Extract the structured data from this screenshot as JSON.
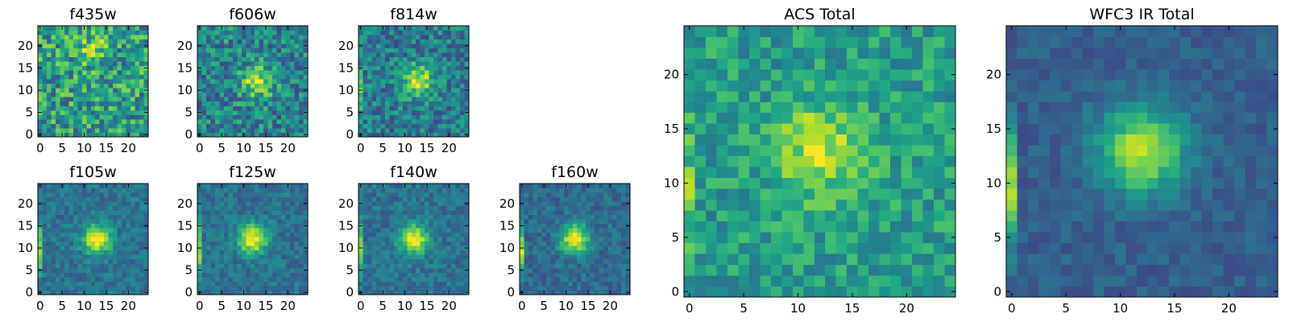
{
  "chart_data": {
    "type": "heatmap",
    "colormap": "viridis",
    "pixels_per_side": 25,
    "panels": [
      {
        "id": "f435w",
        "title": "f435w",
        "xticks": [
          0,
          5,
          10,
          15,
          20
        ],
        "yticks": [
          0,
          5,
          10,
          15,
          20
        ],
        "center": [
          12,
          19
        ],
        "peak": 0.3,
        "sigma": 2.2,
        "noise": 0.55,
        "base": 0.55,
        "edge": 0.0,
        "seed": 11,
        "xlim": [
          -0.5,
          24.5
        ],
        "ylim": [
          -0.5,
          24.5
        ]
      },
      {
        "id": "f606w",
        "title": "f606w",
        "xticks": [
          0,
          5,
          10,
          15,
          20
        ],
        "yticks": [
          0,
          5,
          10,
          15,
          20
        ],
        "center": [
          13,
          12
        ],
        "peak": 0.45,
        "sigma": 2.5,
        "noise": 0.45,
        "base": 0.45,
        "edge": 0.0,
        "seed": 23,
        "xlim": [
          -0.5,
          24.5
        ],
        "ylim": [
          -0.5,
          24.5
        ]
      },
      {
        "id": "f814w",
        "title": "f814w",
        "xticks": [
          0,
          5,
          10,
          15,
          20
        ],
        "yticks": [
          0,
          5,
          10,
          15,
          20
        ],
        "center": [
          13,
          12
        ],
        "peak": 0.5,
        "sigma": 2.5,
        "noise": 0.4,
        "base": 0.42,
        "edge": 0.25,
        "seed": 37,
        "xlim": [
          -0.5,
          24.5
        ],
        "ylim": [
          -0.5,
          24.5
        ]
      },
      {
        "id": "f105w",
        "title": "f105w",
        "xticks": [
          0,
          5,
          10,
          15,
          20
        ],
        "yticks": [
          0,
          5,
          10,
          15,
          20
        ],
        "center": [
          13,
          12
        ],
        "peak": 0.65,
        "sigma": 2.3,
        "noise": 0.22,
        "base": 0.38,
        "edge": 0.45,
        "seed": 41,
        "xlim": [
          -0.5,
          24.5
        ],
        "ylim": [
          -0.5,
          24.5
        ]
      },
      {
        "id": "f125w",
        "title": "f125w",
        "xticks": [
          0,
          5,
          10,
          15,
          20
        ],
        "yticks": [
          0,
          5,
          10,
          15,
          20
        ],
        "center": [
          12,
          12
        ],
        "peak": 0.65,
        "sigma": 2.3,
        "noise": 0.22,
        "base": 0.38,
        "edge": 0.45,
        "seed": 53,
        "xlim": [
          -0.5,
          24.5
        ],
        "ylim": [
          -0.5,
          24.5
        ]
      },
      {
        "id": "f140w",
        "title": "f140w",
        "xticks": [
          0,
          5,
          10,
          15,
          20
        ],
        "yticks": [
          0,
          5,
          10,
          15,
          20
        ],
        "center": [
          12,
          12
        ],
        "peak": 0.62,
        "sigma": 2.3,
        "noise": 0.22,
        "base": 0.38,
        "edge": 0.5,
        "seed": 67,
        "xlim": [
          -0.5,
          24.5
        ],
        "ylim": [
          -0.5,
          24.5
        ]
      },
      {
        "id": "f160w",
        "title": "f160w",
        "xticks": [
          0,
          5,
          10,
          15,
          20
        ],
        "yticks": [
          0,
          5,
          10,
          15,
          20
        ],
        "center": [
          12,
          12
        ],
        "peak": 0.65,
        "sigma": 2.3,
        "noise": 0.22,
        "base": 0.35,
        "edge": 0.55,
        "seed": 79,
        "xlim": [
          -0.5,
          24.5
        ],
        "ylim": [
          -0.5,
          24.5
        ]
      },
      {
        "id": "acs-total",
        "title": "ACS Total",
        "xticks": [
          0,
          5,
          10,
          15,
          20
        ],
        "yticks": [
          0,
          5,
          10,
          15,
          20
        ],
        "center": [
          12,
          13
        ],
        "peak": 0.35,
        "sigma": 3.0,
        "noise": 0.32,
        "base": 0.55,
        "edge": 0.2,
        "seed": 97,
        "xlim": [
          -0.5,
          24.5
        ],
        "ylim": [
          -0.5,
          24.5
        ]
      },
      {
        "id": "wfc3-ir-total",
        "title": "WFC3 IR Total",
        "xticks": [
          0,
          5,
          10,
          15,
          20
        ],
        "yticks": [
          0,
          5,
          10,
          15,
          20
        ],
        "center": [
          12,
          13
        ],
        "peak": 0.6,
        "sigma": 2.8,
        "noise": 0.15,
        "base": 0.3,
        "edge": 0.55,
        "seed": 113,
        "xlim": [
          -0.5,
          24.5
        ],
        "ylim": [
          -0.5,
          24.5
        ]
      }
    ]
  }
}
